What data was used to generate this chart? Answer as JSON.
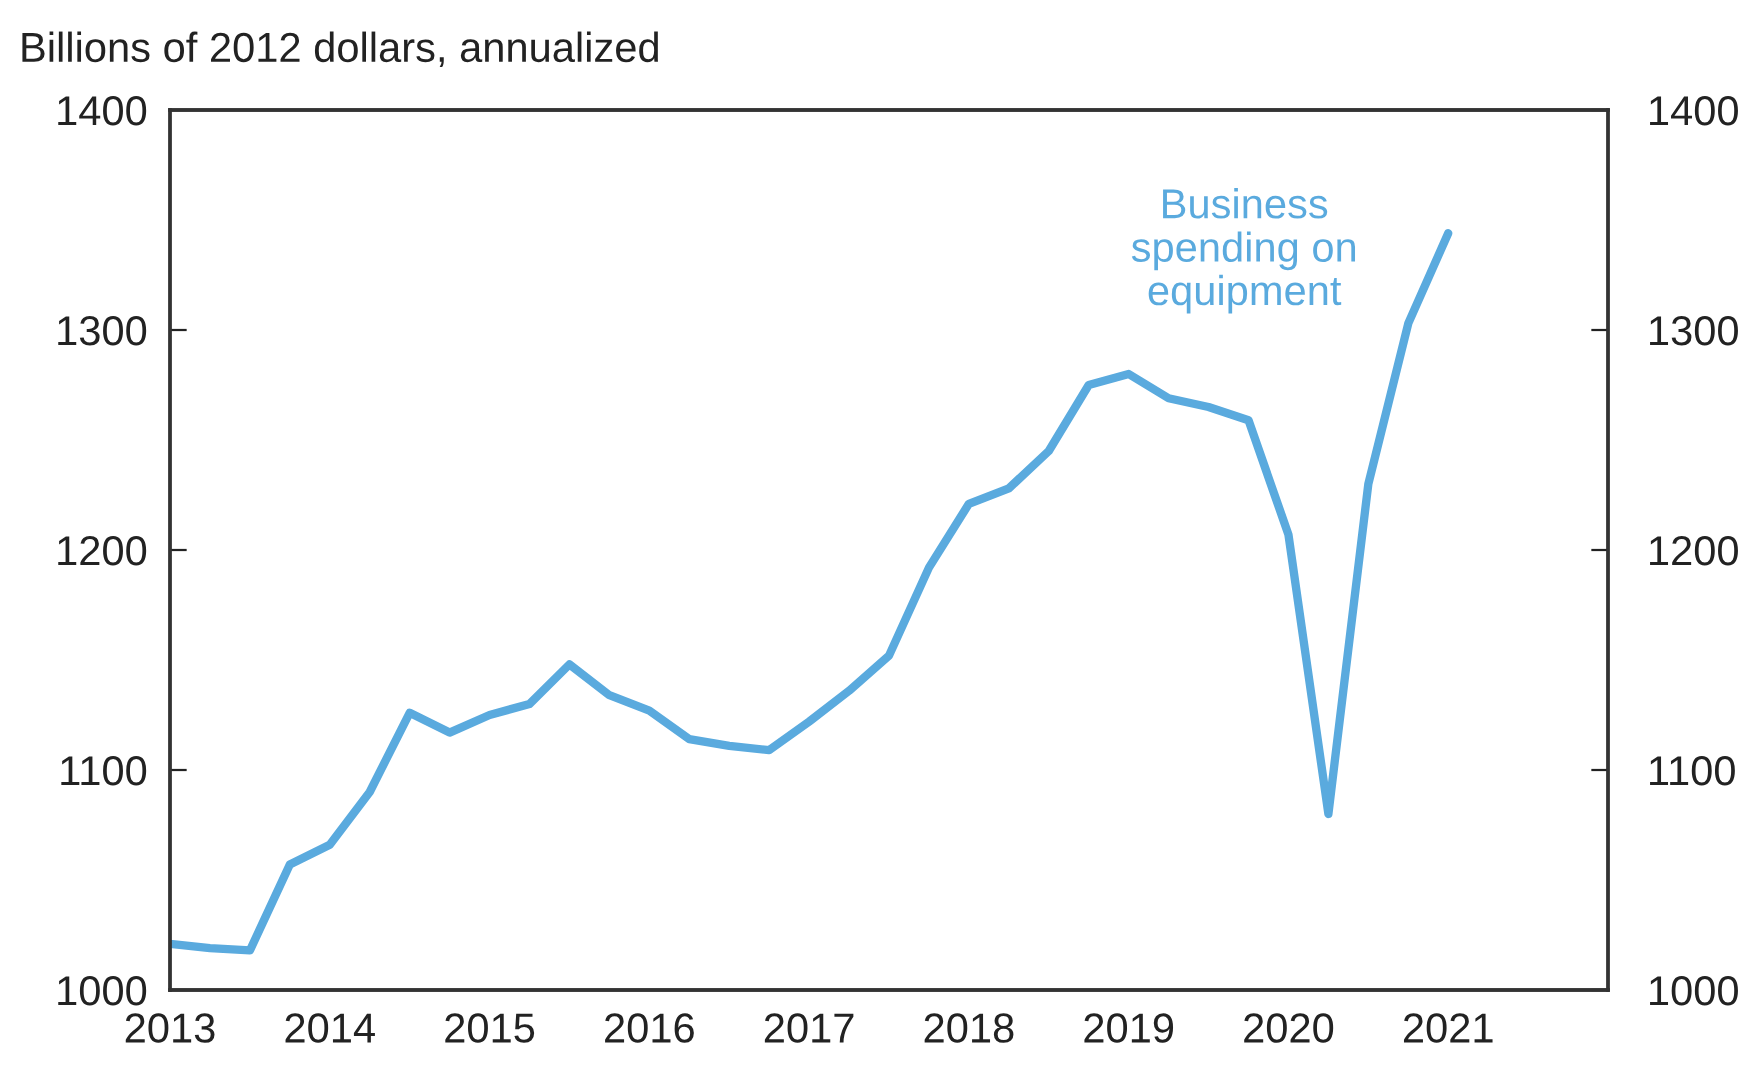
{
  "chart_data": {
    "type": "line",
    "ylabel": "Billions of 2012 dollars, annualized",
    "x": [
      2013,
      2013.25,
      2013.5,
      2013.75,
      2014,
      2014.25,
      2014.5,
      2014.75,
      2015,
      2015.25,
      2015.5,
      2015.75,
      2016,
      2016.25,
      2016.5,
      2016.75,
      2017,
      2017.25,
      2017.5,
      2017.75,
      2018,
      2018.25,
      2018.5,
      2018.75,
      2019,
      2019.25,
      2019.5,
      2019.75,
      2020,
      2020.25,
      2020.5,
      2020.75,
      2021
    ],
    "series": [
      {
        "name": "Business\nspending on\nequipment",
        "color": "#5aaade",
        "values": [
          1021,
          1019,
          1018,
          1057,
          1066,
          1090,
          1126,
          1117,
          1125,
          1130,
          1148,
          1134,
          1127,
          1114,
          1111,
          1109,
          1122,
          1136,
          1152,
          1192,
          1221,
          1228,
          1245,
          1275,
          1280,
          1269,
          1265,
          1259,
          1207,
          1080,
          1230,
          1303,
          1344
        ]
      }
    ],
    "xlim": [
      2013,
      2022
    ],
    "xticks": [
      2013,
      2014,
      2015,
      2016,
      2017,
      2018,
      2019,
      2020,
      2021
    ],
    "ylim": [
      1000,
      1400
    ],
    "yticks": [
      1000,
      1100,
      1200,
      1300,
      1400
    ],
    "y2lim": [
      1000,
      1400
    ],
    "y2ticks": [
      1000,
      1100,
      1200,
      1300,
      1400
    ],
    "grid": false,
    "legend": false,
    "line_style": "solid",
    "marker": "none"
  }
}
